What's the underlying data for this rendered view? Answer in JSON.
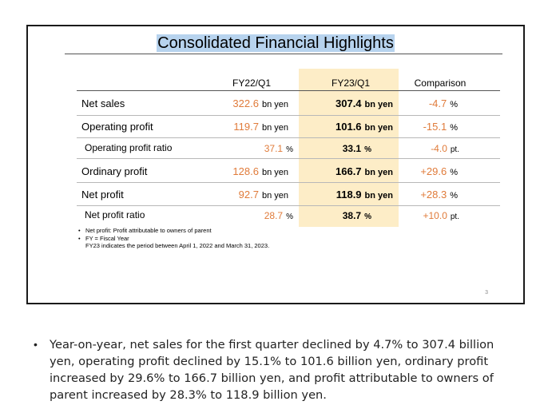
{
  "slide": {
    "title": "Consolidated Financial Highlights",
    "columns": [
      "FY22/Q1",
      "FY23/Q1",
      "Comparison"
    ],
    "rows": [
      {
        "label": "Net sales",
        "fy22": "322.6",
        "fy22_unit": "bn yen",
        "fy23": "307.4",
        "fy23_unit": "bn yen",
        "cmp": "-4.7",
        "cmp_unit": "%"
      },
      {
        "label": "Operating profit",
        "fy22": "119.7",
        "fy22_unit": "bn yen",
        "fy23": "101.6",
        "fy23_unit": "bn yen",
        "cmp": "-15.1",
        "cmp_unit": "%"
      },
      {
        "label": "Operating profit ratio",
        "fy22": "37.1",
        "fy22_unit": "%",
        "fy23": "33.1",
        "fy23_unit": "%",
        "cmp": "-4.0",
        "cmp_unit": "pt."
      },
      {
        "label": "Ordinary profit",
        "fy22": "128.6",
        "fy22_unit": "bn yen",
        "fy23": "166.7",
        "fy23_unit": "bn yen",
        "cmp": "+29.6",
        "cmp_unit": "%"
      },
      {
        "label": "Net profit",
        "fy22": "92.7",
        "fy22_unit": "bn yen",
        "fy23": "118.9",
        "fy23_unit": "bn yen",
        "cmp": "+28.3",
        "cmp_unit": "%"
      },
      {
        "label": "Net profit ratio",
        "fy22": "28.7",
        "fy22_unit": "%",
        "fy23": "38.7",
        "fy23_unit": "%",
        "cmp": "+10.0",
        "cmp_unit": "pt."
      }
    ],
    "notes": {
      "bullet1": "Net profit: Profit attributable to owners of parent",
      "bullet2": "FY = Fiscal Year",
      "continuation": "FY23 indicates the period between April 1, 2022 and March 31, 2023."
    },
    "page_number": "3"
  },
  "summary": {
    "bullet_char": "•",
    "text": "Year-on-year, net sales for the first quarter declined by 4.7% to 307.4 billion yen, operating profit declined by 15.1% to 101.6 billion yen, ordinary profit increased by 29.6% to 166.7 billion yen, and profit attributable to owners of parent increased by 28.3% to 118.9 billion yen."
  },
  "colors": {
    "title_highlight": "#b7d3ee",
    "fy23_column_fill": "#fdedc7",
    "fy22_value_color": "#e07b3a",
    "comparison_value_color": "#e07b3a"
  }
}
